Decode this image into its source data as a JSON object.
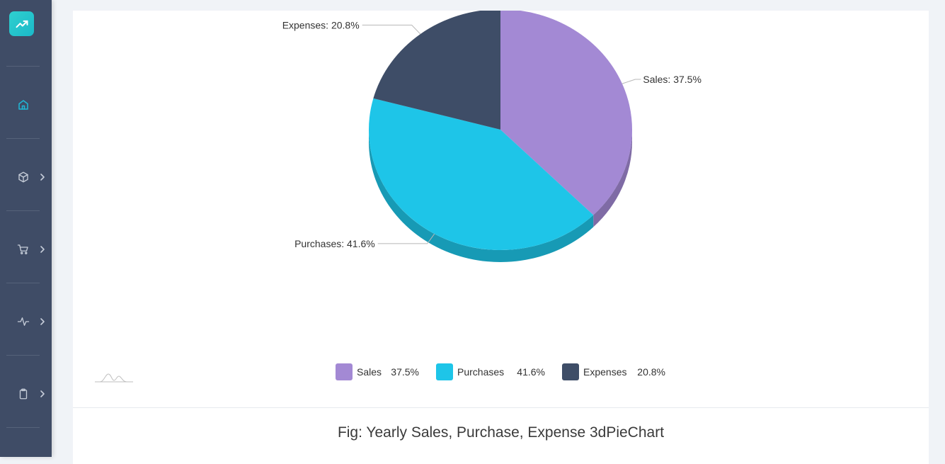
{
  "colors": {
    "sidebar": "#3f4c66",
    "accent": "#1fb8d6",
    "sales": "#a389d4",
    "purchases": "#1ec5e8",
    "expenses": "#3e4d67"
  },
  "sidebar": {
    "logo_icon": "trending-up-icon",
    "items": [
      {
        "icon": "home-icon",
        "active": true,
        "has_chevron": false
      },
      {
        "icon": "box-icon",
        "active": false,
        "has_chevron": true
      },
      {
        "icon": "cart-icon",
        "active": false,
        "has_chevron": true
      },
      {
        "icon": "activity-icon",
        "active": false,
        "has_chevron": true
      },
      {
        "icon": "clipboard-icon",
        "active": false,
        "has_chevron": true
      }
    ]
  },
  "chart_data": {
    "type": "pie",
    "style": "3d",
    "series": [
      {
        "name": "Sales",
        "value": 37.5,
        "label": "Sales: 37.5%",
        "legend_value": "37.5%",
        "color": "#a389d4"
      },
      {
        "name": "Purchases",
        "value": 41.6,
        "label": "Purchases: 41.6%",
        "legend_value": "41.6%",
        "color": "#1ec5e8"
      },
      {
        "name": "Expenses",
        "value": 20.8,
        "label": "Expenses: 20.8%",
        "legend_value": "20.8%",
        "color": "#3e4d67"
      }
    ],
    "legend_placement": "bottom"
  },
  "caption": "Fig: Yearly Sales, Purchase, Expense 3dPieChart"
}
